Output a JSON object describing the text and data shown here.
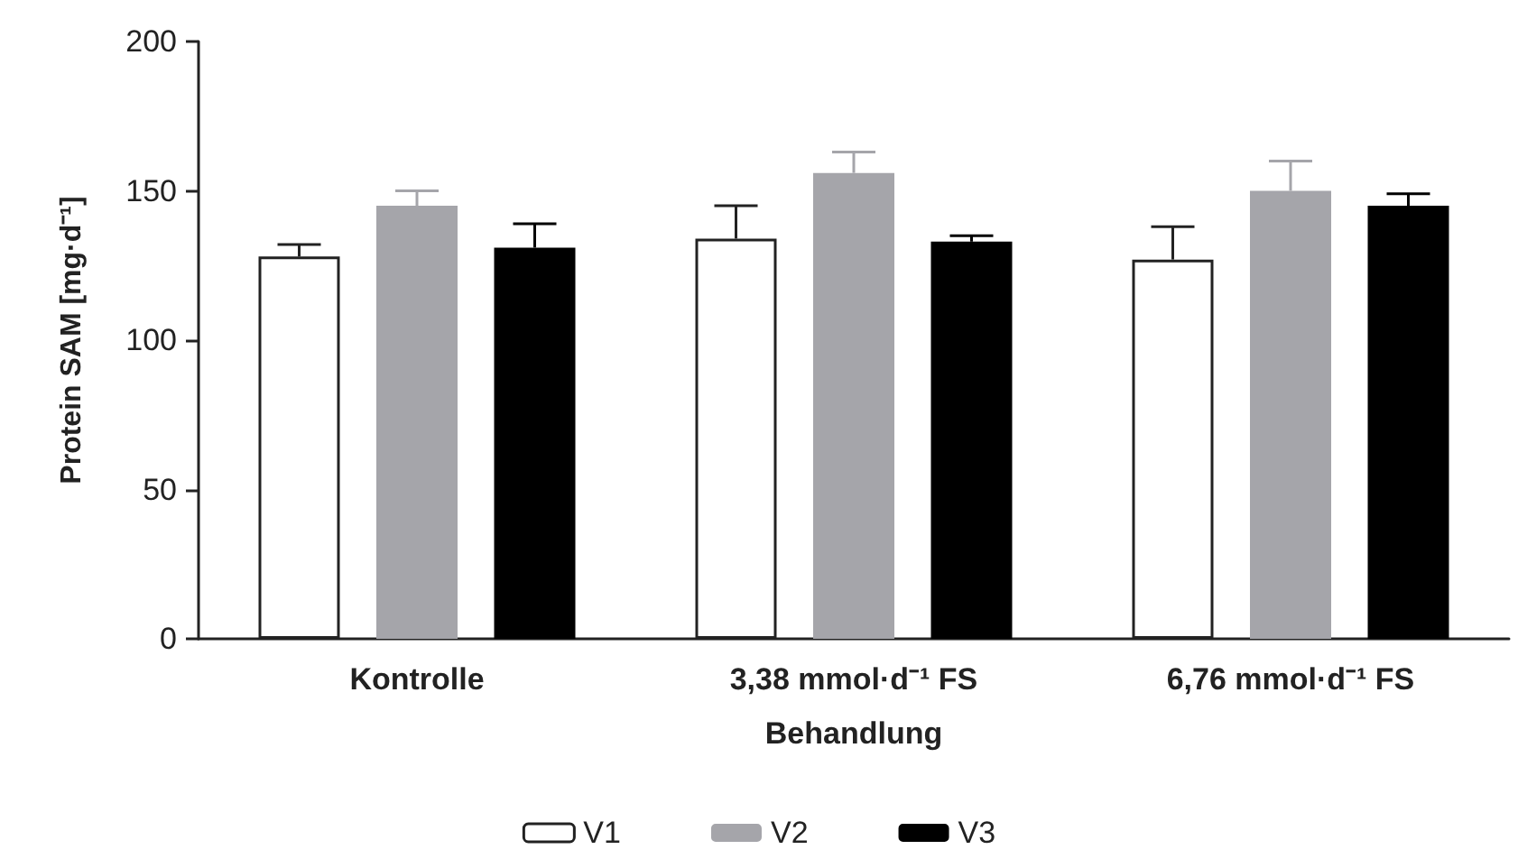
{
  "chart_data": {
    "type": "bar",
    "xlabel": "Behandlung",
    "ylabel": "Protein SAM [mg·d⁻¹]",
    "categories": [
      "Kontrolle",
      "3,38 mmol·d⁻¹ FS",
      "6,76 mmol·d⁻¹ FS"
    ],
    "series": [
      {
        "name": "V1",
        "color": "#ffffff",
        "values": [
          128,
          134,
          127
        ],
        "errors": [
          [
            128,
            132
          ],
          [
            134,
            145
          ],
          [
            127,
            138
          ]
        ]
      },
      {
        "name": "V2",
        "color": "#a5a5aa",
        "values": [
          145,
          156,
          150
        ],
        "errors": [
          [
            145,
            150
          ],
          [
            156,
            163
          ],
          [
            150,
            160
          ]
        ]
      },
      {
        "name": "V3",
        "color": "#000000",
        "values": [
          131,
          133,
          145
        ],
        "errors": [
          [
            131,
            139
          ],
          [
            133,
            135
          ],
          [
            145,
            149
          ]
        ]
      }
    ],
    "ylim": [
      0,
      200
    ],
    "yticks": [
      0,
      50,
      100,
      150,
      200
    ],
    "grid": false,
    "legend": "bottom"
  }
}
